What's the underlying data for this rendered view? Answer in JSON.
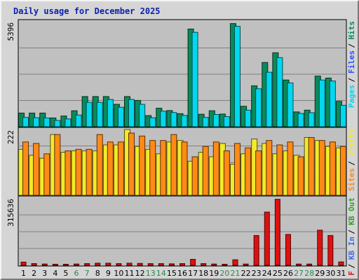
{
  "chart_data": {
    "type": "bar",
    "title": "Daily usage for December 2025",
    "categories": [
      "1",
      "2",
      "3",
      "4",
      "5",
      "6",
      "7",
      "8",
      "9",
      "10",
      "11",
      "12",
      "13",
      "14",
      "15",
      "16",
      "17",
      "18",
      "19",
      "20",
      "21",
      "22",
      "23",
      "24",
      "25",
      "26",
      "27",
      "28",
      "29",
      "30",
      "31"
    ],
    "weekend_days": [
      "6",
      "7",
      "13",
      "14",
      "20",
      "21",
      "27",
      "28"
    ],
    "colors": {
      "pages": "#00d8f0",
      "files": "#2a4fff",
      "hits": "#0a8a5a",
      "visits": "#f2ea2a",
      "sites": "#ff8a16",
      "kb_out": "#2fa02f",
      "kb_in": "#3a6df0",
      "kb_f": "#e01010",
      "weekday_label": "#000000",
      "weekend_label": "#2a8a4a"
    },
    "panels": [
      {
        "id": "top",
        "max_label": "5396",
        "ymax": 5396,
        "legend": [
          {
            "text": "Hits",
            "color_key": "hits"
          },
          {
            "text": "Files",
            "color_key": "files"
          },
          {
            "text": "Pages",
            "color_key": "pages"
          }
        ],
        "series": [
          {
            "name": "Hits",
            "color_key": "hits",
            "values": [
              700,
              700,
              700,
              450,
              550,
              820,
              1550,
              1550,
              1550,
              1150,
              1550,
              1350,
              570,
              950,
              830,
              670,
              5020,
              640,
              820,
              650,
              5300,
              1050,
              2100,
              3300,
              3800,
              2400,
              760,
              850,
              2600,
              2500,
              1300
            ]
          },
          {
            "name": "Pages",
            "color_key": "pages",
            "values": [
              480,
              460,
              450,
              320,
              400,
              600,
              1250,
              1250,
              1400,
              1000,
              1400,
              1150,
              460,
              800,
              730,
              580,
              4850,
              480,
              630,
              520,
              5160,
              850,
              1950,
              2800,
              3550,
              2250,
              680,
              720,
              2400,
              2350,
              1100
            ]
          }
        ]
      },
      {
        "id": "middle",
        "max_label": "222",
        "ymax": 222,
        "legend": [
          {
            "text": "Visits",
            "color_key": "visits"
          },
          {
            "text": "Sites",
            "color_key": "sites"
          }
        ],
        "series": [
          {
            "name": "Visits",
            "color_key": "visits",
            "values": [
              155,
              135,
              125,
              205,
              145,
              150,
              150,
              150,
              170,
              170,
              222,
              165,
              155,
              140,
              180,
              185,
              115,
              145,
              130,
              175,
              105,
              140,
              190,
              175,
              140,
              150,
              135,
              195,
              185,
              165,
              160
            ]
          },
          {
            "name": "Sites",
            "color_key": "sites",
            "values": [
              180,
              175,
              140,
              205,
              150,
              155,
              155,
              205,
              180,
              180,
              210,
              200,
              185,
              185,
              205,
              180,
              130,
              165,
              180,
              150,
              175,
              160,
              150,
              185,
              170,
              180,
              130,
              195,
              185,
              180,
              165
            ]
          }
        ]
      },
      {
        "id": "bottom",
        "max_label": "315636",
        "ymax": 315636,
        "legend": [
          {
            "text": "KB Out",
            "color_key": "kb_out"
          },
          {
            "text": "KB In",
            "color_key": "kb_in"
          },
          {
            "text": "KB F",
            "color_key": "kb_f"
          }
        ],
        "series": [
          {
            "name": "KB F",
            "color_key": "kb_f",
            "values": [
              15000,
              8000,
              6000,
              5000,
              5000,
              6000,
              8000,
              10000,
              10000,
              8000,
              10000,
              9000,
              8000,
              8000,
              7000,
              8000,
              28000,
              8000,
              6000,
              5000,
              26000,
              6000,
              140000,
              250000,
              310000,
              145000,
              6000,
              6000,
              165000,
              140000,
              16000
            ]
          }
        ]
      }
    ]
  }
}
